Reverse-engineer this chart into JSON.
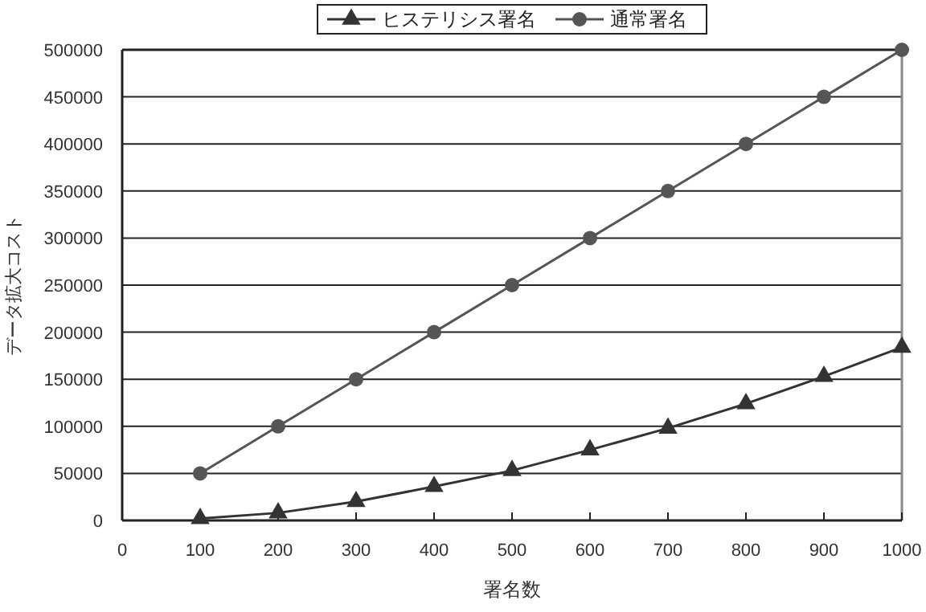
{
  "chart_data": {
    "type": "line",
    "xlabel": "署名数",
    "ylabel": "データ拡大コスト",
    "x": [
      100,
      200,
      300,
      400,
      500,
      600,
      700,
      800,
      900,
      1000
    ],
    "series": [
      {
        "name": "ヒステリシス署名",
        "color": "#333333",
        "marker": "triangle",
        "values": [
          2000,
          8000,
          20000,
          36000,
          53000,
          75000,
          98000,
          124000,
          153000,
          184000
        ]
      },
      {
        "name": "通常署名",
        "color": "#555555",
        "marker": "circle",
        "values": [
          50000,
          100000,
          150000,
          200000,
          250000,
          300000,
          350000,
          400000,
          450000,
          500000
        ]
      }
    ],
    "xlim": [
      0,
      1000
    ],
    "xticks": [
      0,
      100,
      200,
      300,
      400,
      500,
      600,
      700,
      800,
      900,
      1000
    ],
    "ylim": [
      0,
      500000
    ],
    "yticks": [
      0,
      50000,
      100000,
      150000,
      200000,
      250000,
      300000,
      350000,
      400000,
      450000,
      500000
    ],
    "grid": "y",
    "legend": "top",
    "line_style": "solid"
  }
}
